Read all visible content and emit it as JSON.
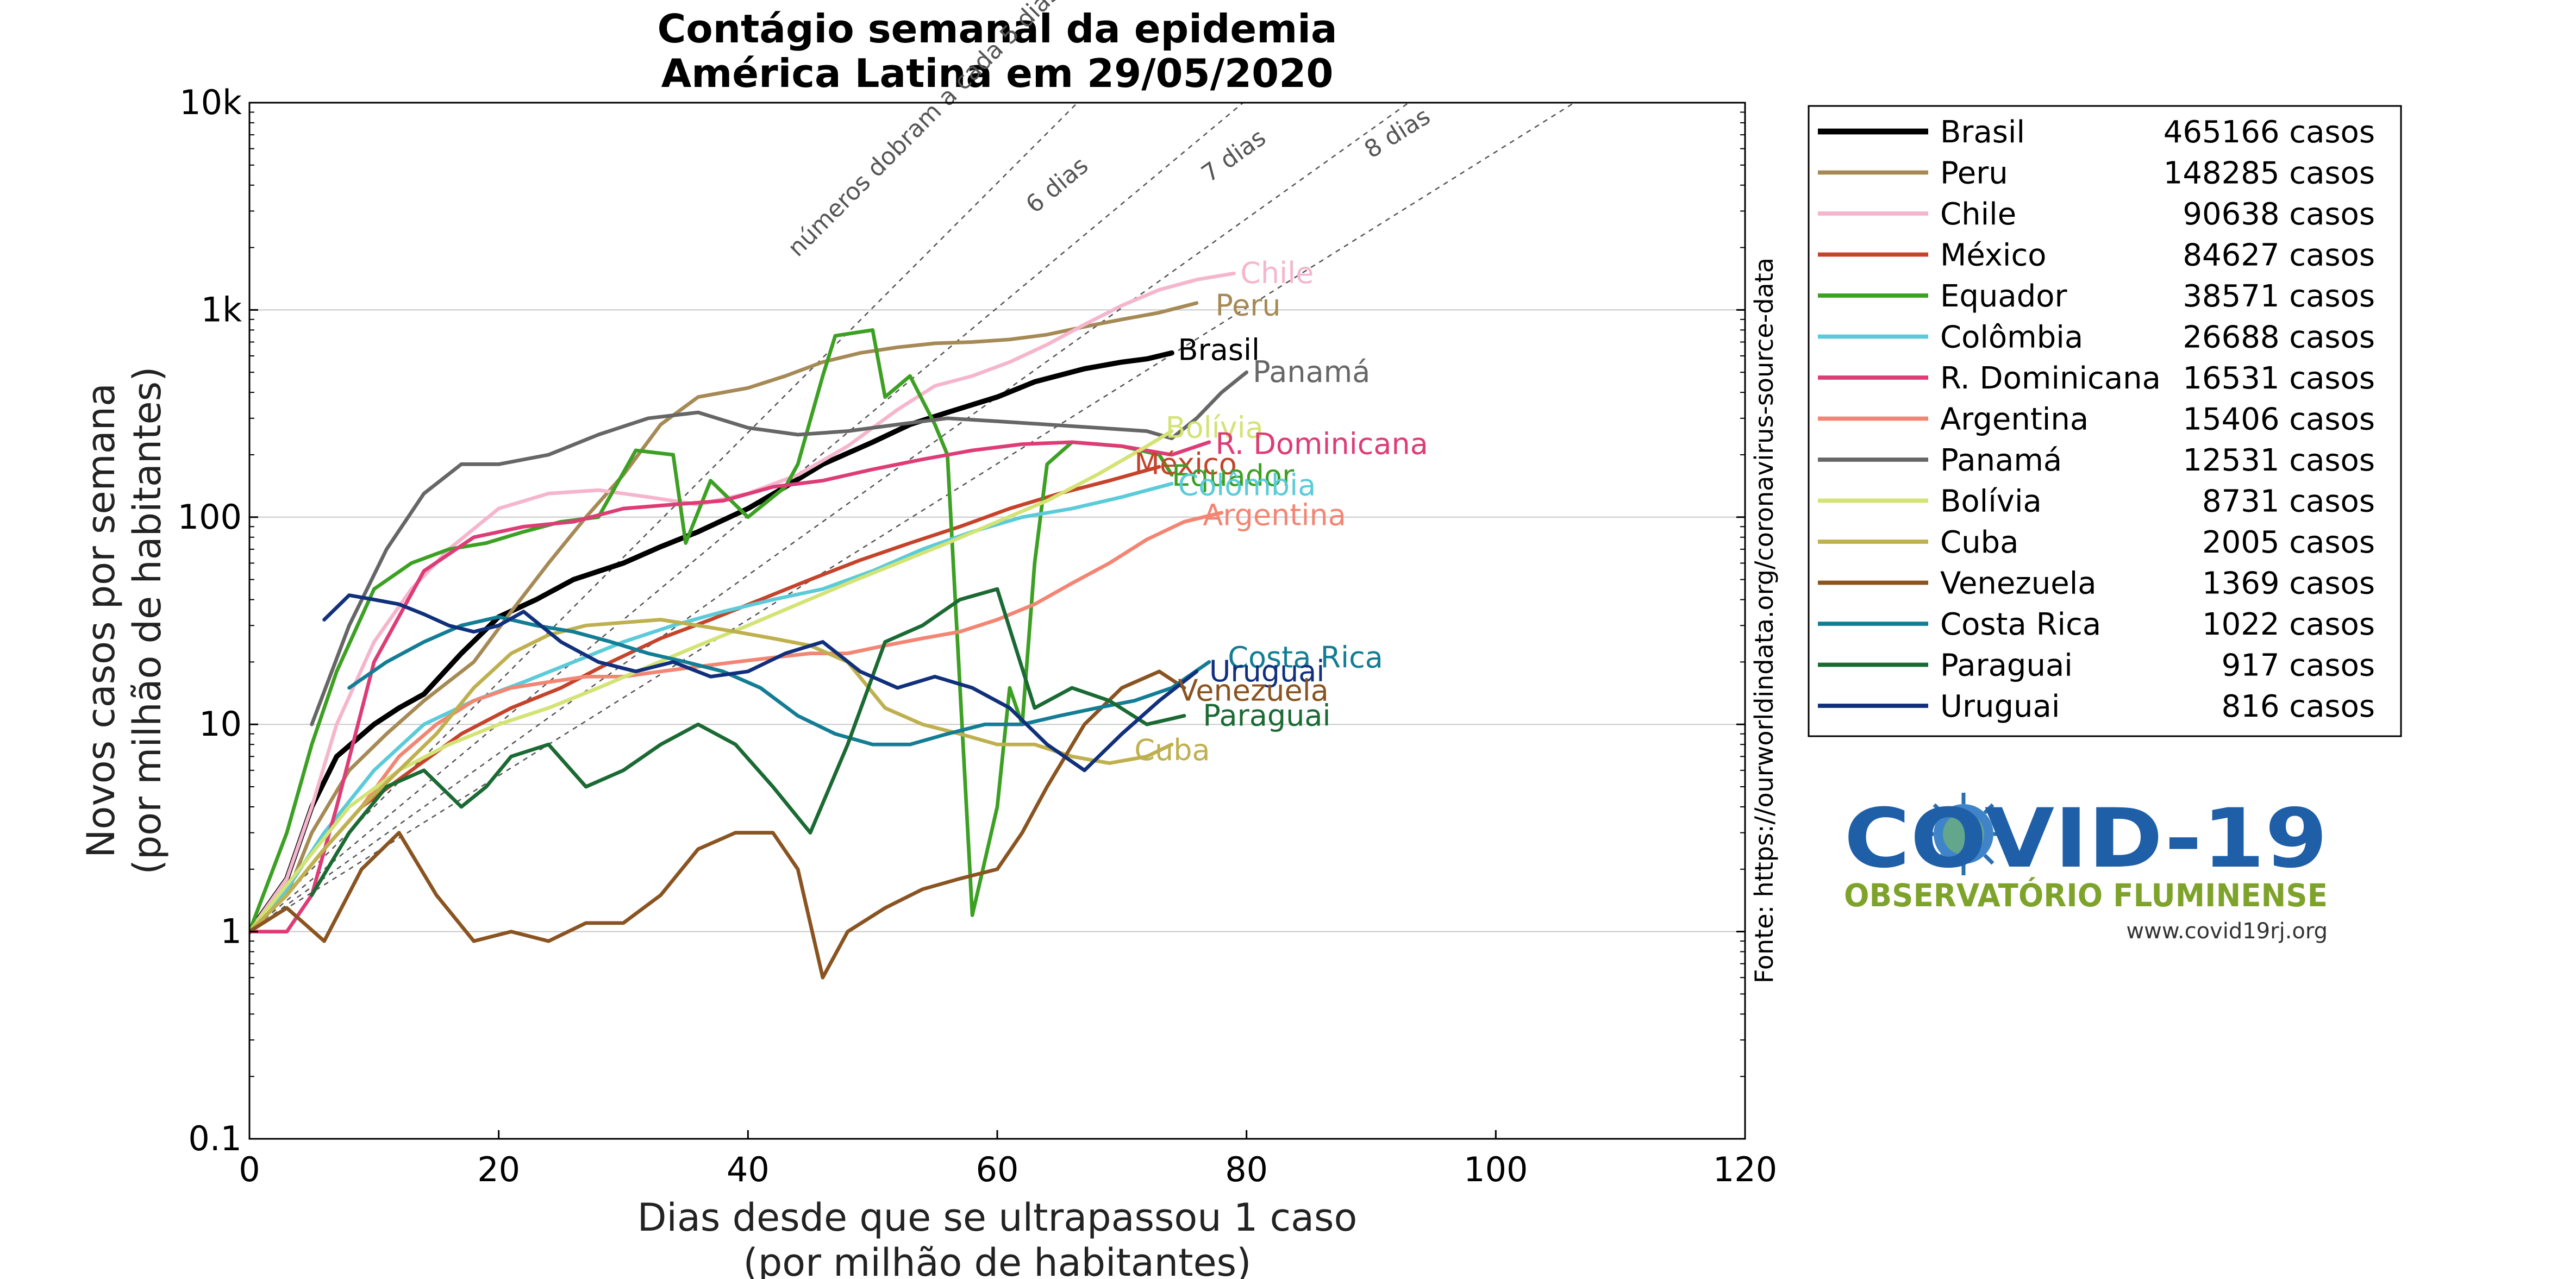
{
  "chart_data": {
    "type": "line",
    "title": [
      "Contágio semanal da epidemia",
      "América Latina em 29/05/2020"
    ],
    "xlabel": [
      "Dias desde que se ultrapassou 1 caso",
      "(por milhão de habitantes)"
    ],
    "ylabel": [
      "Novos casos por semana",
      "(por milhão de habitantes)"
    ],
    "xlim": [
      0,
      120
    ],
    "ylim": [
      0.1,
      10000
    ],
    "yscale": "log",
    "xticks": [
      "0",
      "20",
      "40",
      "60",
      "80",
      "100",
      "120"
    ],
    "yticks": [
      "0.1",
      "1",
      "10",
      "100",
      "1k",
      "10k"
    ],
    "grid": "horizontal",
    "legend_position": "right",
    "source": "Fonte: https://ourworldindata.org/coronavirus-source-data",
    "guides": [
      {
        "label": "números dobram a cada 5 dias",
        "doubling_days": 5
      },
      {
        "label": "6 dias",
        "doubling_days": 6
      },
      {
        "label": "7 dias",
        "doubling_days": 7
      },
      {
        "label": "8 dias",
        "doubling_days": 8
      }
    ],
    "series": [
      {
        "name": "Brasil",
        "cases": "465166 casos",
        "color": "#000000",
        "width": 4.5,
        "x": [
          0,
          3,
          5,
          7,
          10,
          12,
          14,
          17,
          20,
          23,
          26,
          30,
          33,
          36,
          40,
          43,
          46,
          50,
          53,
          56,
          60,
          63,
          67,
          70,
          72,
          74
        ],
        "y": [
          1,
          1.8,
          4,
          7,
          10,
          12,
          14,
          22,
          33,
          40,
          50,
          60,
          72,
          85,
          110,
          140,
          180,
          230,
          280,
          320,
          380,
          450,
          520,
          560,
          580,
          620
        ]
      },
      {
        "name": "Peru",
        "cases": "148285 casos",
        "color": "#a68a56",
        "width": 3.2,
        "x": [
          0,
          3,
          5,
          8,
          11,
          14,
          18,
          21,
          24,
          27,
          30,
          33,
          36,
          40,
          43,
          46,
          49,
          52,
          55,
          58,
          61,
          64,
          67,
          70,
          73,
          76
        ],
        "y": [
          1,
          1.5,
          3,
          6,
          9,
          13,
          20,
          35,
          60,
          100,
          160,
          280,
          380,
          420,
          480,
          560,
          620,
          660,
          690,
          700,
          720,
          760,
          830,
          900,
          970,
          1080
        ]
      },
      {
        "name": "Chile",
        "cases": "90638 casos",
        "color": "#f5b6cd",
        "width": 3.2,
        "x": [
          0,
          3,
          5,
          7,
          10,
          13,
          16,
          20,
          24,
          28,
          32,
          36,
          40,
          44,
          48,
          52,
          55,
          58,
          61,
          64,
          67,
          70,
          73,
          76,
          79
        ],
        "y": [
          1,
          1.8,
          4,
          10,
          25,
          45,
          70,
          110,
          130,
          135,
          125,
          115,
          130,
          160,
          220,
          330,
          430,
          480,
          560,
          680,
          850,
          1050,
          1250,
          1400,
          1500
        ]
      },
      {
        "name": "México",
        "cases": "84627 casos",
        "color": "#c6432b",
        "width": 3.2,
        "x": [
          0,
          3,
          6,
          9,
          13,
          17,
          21,
          25,
          29,
          33,
          37,
          41,
          45,
          49,
          53,
          57,
          61,
          65,
          69,
          73
        ],
        "y": [
          1,
          1.5,
          2.5,
          4,
          6,
          9,
          12,
          15,
          20,
          26,
          32,
          40,
          50,
          62,
          75,
          90,
          110,
          130,
          150,
          175
        ]
      },
      {
        "name": "Equador",
        "cases": "38571 casos",
        "color": "#3ca023",
        "width": 3.2,
        "x": [
          0,
          3,
          5,
          7,
          10,
          13,
          16,
          19,
          22,
          25,
          28,
          31,
          34,
          35,
          37,
          40,
          43,
          44,
          46,
          47,
          50,
          51,
          53,
          55,
          56,
          58,
          60,
          61,
          62,
          63,
          64,
          66,
          70,
          73,
          74
        ],
        "y": [
          1,
          3,
          8,
          18,
          45,
          60,
          70,
          75,
          85,
          95,
          100,
          210,
          200,
          75,
          150,
          100,
          140,
          180,
          480,
          750,
          800,
          380,
          480,
          280,
          200,
          1.2,
          4,
          15,
          10,
          60,
          180,
          230,
          220,
          200,
          160
        ]
      },
      {
        "name": "Colômbia",
        "cases": "26688 casos",
        "color": "#5bcbd9",
        "width": 3.2,
        "x": [
          0,
          3,
          6,
          10,
          14,
          18,
          22,
          26,
          30,
          34,
          38,
          42,
          46,
          50,
          54,
          58,
          62,
          66,
          70,
          74
        ],
        "y": [
          1,
          1.6,
          3,
          6,
          10,
          13,
          16,
          20,
          25,
          30,
          35,
          40,
          45,
          55,
          70,
          85,
          100,
          110,
          125,
          145
        ]
      },
      {
        "name": "R. Dominicana",
        "cases": "16531 casos",
        "color": "#de3c76",
        "width": 3.2,
        "x": [
          0,
          3,
          5,
          7,
          10,
          14,
          18,
          22,
          26,
          30,
          34,
          38,
          42,
          46,
          50,
          54,
          58,
          62,
          66,
          70,
          74,
          77
        ],
        "y": [
          1,
          1,
          1.5,
          4,
          20,
          55,
          80,
          90,
          95,
          110,
          115,
          120,
          140,
          150,
          170,
          190,
          210,
          225,
          230,
          220,
          200,
          230
        ]
      },
      {
        "name": "Argentina",
        "cases": "15406 casos",
        "color": "#f38573",
        "width": 3.2,
        "x": [
          0,
          3,
          6,
          9,
          12,
          15,
          18,
          21,
          24,
          27,
          30,
          33,
          36,
          39,
          42,
          45,
          48,
          51,
          54,
          57,
          60,
          63,
          66,
          69,
          72,
          75,
          78
        ],
        "y": [
          1,
          1.5,
          2.5,
          4,
          7,
          10,
          13,
          15,
          16,
          17,
          17,
          18,
          19,
          20,
          21,
          22,
          22,
          24,
          26,
          28,
          32,
          38,
          48,
          60,
          78,
          95,
          105
        ]
      },
      {
        "name": "Panamá",
        "cases": "12531 casos",
        "color": "#666666",
        "width": 3.2,
        "x": [
          5,
          8,
          11,
          14,
          17,
          20,
          24,
          28,
          32,
          36,
          40,
          44,
          48,
          52,
          56,
          60,
          64,
          68,
          72,
          74,
          76,
          78,
          80
        ],
        "y": [
          10,
          30,
          70,
          130,
          180,
          180,
          200,
          250,
          300,
          320,
          270,
          250,
          260,
          280,
          300,
          290,
          280,
          270,
          260,
          240,
          300,
          400,
          500
        ]
      },
      {
        "name": "Bolívia",
        "cases": "8731 casos",
        "color": "#d3e374",
        "width": 3.2,
        "x": [
          0,
          4,
          8,
          12,
          16,
          20,
          24,
          28,
          32,
          36,
          40,
          44,
          48,
          52,
          56,
          60,
          64,
          68,
          72,
          74
        ],
        "y": [
          1,
          2,
          4,
          6,
          8,
          10,
          12,
          15,
          19,
          24,
          30,
          38,
          48,
          60,
          75,
          95,
          120,
          160,
          220,
          260
        ]
      },
      {
        "name": "Cuba",
        "cases": "2005 casos",
        "color": "#bfb04f",
        "width": 3.2,
        "x": [
          0,
          3,
          6,
          9,
          12,
          15,
          18,
          21,
          24,
          27,
          30,
          33,
          36,
          39,
          42,
          45,
          48,
          51,
          54,
          57,
          60,
          63,
          66,
          69,
          72,
          74
        ],
        "y": [
          1,
          1.5,
          2.5,
          4,
          6,
          9,
          15,
          22,
          27,
          30,
          31,
          32,
          30,
          28,
          26,
          24,
          20,
          12,
          10,
          9,
          8,
          8,
          7,
          6.5,
          7,
          8
        ]
      },
      {
        "name": "Venezuela",
        "cases": "1369 casos",
        "color": "#8a5421",
        "width": 3.2,
        "x": [
          0,
          3,
          6,
          9,
          12,
          15,
          18,
          21,
          24,
          27,
          30,
          33,
          36,
          39,
          42,
          44,
          46,
          48,
          51,
          54,
          57,
          60,
          62,
          64,
          67,
          70,
          73,
          75
        ],
        "y": [
          1,
          1.3,
          0.9,
          2,
          3,
          1.5,
          0.9,
          1,
          0.9,
          1.1,
          1.1,
          1.5,
          2.5,
          3,
          3,
          2,
          0.6,
          1,
          1.3,
          1.6,
          1.8,
          2,
          3,
          5,
          10,
          15,
          18,
          15
        ]
      },
      {
        "name": "Costa Rica",
        "cases": "1022 casos",
        "color": "#127d94",
        "width": 3.2,
        "x": [
          8,
          11,
          14,
          17,
          20,
          23,
          26,
          29,
          32,
          35,
          38,
          41,
          44,
          47,
          50,
          53,
          56,
          59,
          62,
          65,
          68,
          71,
          74,
          77
        ],
        "y": [
          15,
          20,
          25,
          30,
          33,
          30,
          28,
          25,
          22,
          20,
          18,
          15,
          11,
          9,
          8,
          8,
          9,
          10,
          10,
          11,
          12,
          13,
          15,
          20
        ]
      },
      {
        "name": "Paraguai",
        "cases": "917 casos",
        "color": "#1a6a33",
        "width": 3.2,
        "x": [
          5,
          8,
          11,
          14,
          17,
          19,
          21,
          24,
          27,
          30,
          33,
          36,
          39,
          42,
          45,
          48,
          51,
          54,
          57,
          60,
          63,
          66,
          69,
          72,
          75
        ],
        "y": [
          1.5,
          3,
          5,
          6,
          4,
          5,
          7,
          8,
          5,
          6,
          8,
          10,
          8,
          5,
          3,
          8,
          25,
          30,
          40,
          45,
          12,
          15,
          13,
          10,
          11
        ]
      },
      {
        "name": "Uruguai",
        "cases": "816 casos",
        "color": "#11307c",
        "width": 3.2,
        "x": [
          6,
          8,
          10,
          12,
          14,
          16,
          18,
          20,
          22,
          25,
          28,
          31,
          34,
          37,
          40,
          43,
          46,
          49,
          52,
          55,
          58,
          61,
          64,
          67,
          70,
          73,
          76
        ],
        "y": [
          32,
          42,
          40,
          38,
          34,
          30,
          28,
          30,
          35,
          25,
          20,
          18,
          20,
          17,
          18,
          22,
          25,
          18,
          15,
          17,
          15,
          12,
          8,
          6,
          9,
          13,
          18
        ]
      }
    ],
    "end_labels": [
      {
        "text": "Chile",
        "series": "Chile",
        "color": "#f5b6cd",
        "x": 79.5,
        "y": 1500
      },
      {
        "text": "Peru",
        "series": "Peru",
        "color": "#a68a56",
        "x": 77.5,
        "y": 1050
      },
      {
        "text": "Brasil",
        "series": "Brasil",
        "color": "#000000",
        "x": 74.5,
        "y": 640
      },
      {
        "text": "Panamá",
        "series": "Panamá",
        "color": "#666666",
        "x": 80.5,
        "y": 500
      },
      {
        "text": "Bolívia",
        "series": "Bolívia",
        "color": "#d3e374",
        "x": 73.5,
        "y": 270
      },
      {
        "text": "R. Dominicana",
        "series": "R. Dominicana",
        "color": "#de3c76",
        "x": 77.5,
        "y": 225
      },
      {
        "text": "México",
        "series": "México",
        "color": "#c6432b",
        "x": 71,
        "y": 180
      },
      {
        "text": "Equador",
        "series": "Equador",
        "color": "#3ca023",
        "x": 74,
        "y": 158
      },
      {
        "text": "Colômbia",
        "series": "Colômbia",
        "color": "#5bcbd9",
        "x": 74.5,
        "y": 142
      },
      {
        "text": "Argentina",
        "series": "Argentina",
        "color": "#f38573",
        "x": 76.5,
        "y": 102
      },
      {
        "text": "Costa Rica",
        "series": "Costa Rica",
        "color": "#127d94",
        "x": 78.5,
        "y": 21
      },
      {
        "text": "Uruguai",
        "series": "Uruguai",
        "color": "#11307c",
        "x": 77,
        "y": 18
      },
      {
        "text": "Venezuela",
        "series": "Venezuela",
        "color": "#8a5421",
        "x": 74.5,
        "y": 14.5
      },
      {
        "text": "Paraguai",
        "series": "Paraguai",
        "color": "#1a6a33",
        "x": 76.5,
        "y": 11
      },
      {
        "text": "Cuba",
        "series": "Cuba",
        "color": "#bfb04f",
        "x": 71,
        "y": 7.5
      }
    ]
  },
  "logo": {
    "title": "COVID-19",
    "subtitle": "OBSERVATÓRIO FLUMINENSE",
    "url": "www.covid19rj.org",
    "title_color": "#1f5fa7",
    "subtitle_color": "#7ea32a"
  }
}
